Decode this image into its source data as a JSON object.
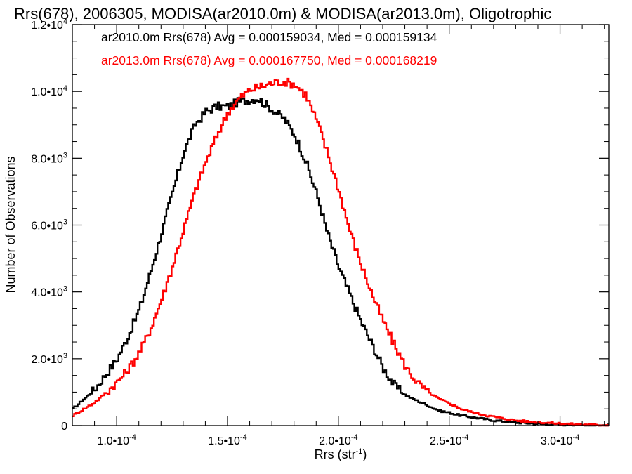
{
  "chart_data": {
    "type": "line",
    "title": "Rrs(678), 2006305, MODISA(ar2010.0m) & MODISA(ar2013.0m), Oligotrophic",
    "xlabel_main": "Rrs (str",
    "xlabel_sup": "-1",
    "xlabel_close": ")",
    "ylabel": "Number of Observations",
    "xlim": [
      8e-05,
      0.000322
    ],
    "ylim": [
      0,
      12000
    ],
    "x_ticks": [
      {
        "value": 0.0001,
        "mant": "1.0•10",
        "exp": "-4"
      },
      {
        "value": 0.00015,
        "mant": "1.5•10",
        "exp": "-4"
      },
      {
        "value": 0.0002,
        "mant": "2.0•10",
        "exp": "-4"
      },
      {
        "value": 0.00025,
        "mant": "2.5•10",
        "exp": "-4"
      },
      {
        "value": 0.0003,
        "mant": "3.0•10",
        "exp": "-4"
      }
    ],
    "y_ticks": [
      {
        "value": 0,
        "mant": "0",
        "exp": ""
      },
      {
        "value": 2000,
        "mant": "2.0•10",
        "exp": "3"
      },
      {
        "value": 4000,
        "mant": "4.0•10",
        "exp": "3"
      },
      {
        "value": 6000,
        "mant": "6.0•10",
        "exp": "3"
      },
      {
        "value": 8000,
        "mant": "8.0•10",
        "exp": "3"
      },
      {
        "value": 10000,
        "mant": "1.0•10",
        "exp": "4"
      },
      {
        "value": 12000,
        "mant": "1.2•10",
        "exp": "4"
      }
    ],
    "series": [
      {
        "name": "ar2010.0m Rrs(678) Avg = 0.000159034, Med = 0.000159134",
        "color": "#000000",
        "x": [
          8e-05,
          8.5e-05,
          9e-05,
          9.5e-05,
          0.0001,
          0.000105,
          0.00011,
          0.000115,
          0.00012,
          0.000125,
          0.00013,
          0.000135,
          0.00014,
          0.000145,
          0.00015,
          0.000155,
          0.00016,
          0.000163,
          0.000165,
          0.00017,
          0.000175,
          0.00018,
          0.000185,
          0.00019,
          0.000195,
          0.0002,
          0.000205,
          0.00021,
          0.000215,
          0.00022,
          0.000225,
          0.00023,
          0.000235,
          0.00024,
          0.000245,
          0.00025,
          0.000255,
          0.00026,
          0.000265,
          0.00027,
          0.000275,
          0.00028,
          0.00029,
          0.0003,
          0.00031,
          0.00032
        ],
        "values": [
          500,
          800,
          1100,
          1550,
          2000,
          2700,
          3500,
          4600,
          5800,
          7000,
          8200,
          9000,
          9400,
          9550,
          9550,
          9700,
          9750,
          9800,
          9700,
          9450,
          9200,
          8700,
          7900,
          6900,
          5700,
          4700,
          3900,
          3100,
          2400,
          1700,
          1200,
          900,
          750,
          600,
          450,
          380,
          300,
          250,
          200,
          150,
          120,
          90,
          50,
          30,
          15,
          5
        ]
      },
      {
        "name": "ar2013.0m Rrs(678) Avg = 0.000167750, Med = 0.000168219",
        "color": "#ff0000",
        "x": [
          8e-05,
          8.5e-05,
          9e-05,
          9.5e-05,
          0.0001,
          0.000105,
          0.00011,
          0.000115,
          0.00012,
          0.000125,
          0.00013,
          0.000135,
          0.00014,
          0.000145,
          0.00015,
          0.000155,
          0.00016,
          0.000165,
          0.00017,
          0.000175,
          0.00018,
          0.000185,
          0.00019,
          0.000195,
          0.0002,
          0.000205,
          0.00021,
          0.000215,
          0.00022,
          0.000225,
          0.00023,
          0.000235,
          0.00024,
          0.000245,
          0.00025,
          0.000255,
          0.00026,
          0.000265,
          0.00027,
          0.000275,
          0.00028,
          0.00029,
          0.0003,
          0.00031,
          0.00032
        ],
        "values": [
          300,
          500,
          700,
          1000,
          1300,
          1700,
          2200,
          2900,
          3800,
          4800,
          5900,
          7000,
          7900,
          8700,
          9400,
          9800,
          10050,
          10150,
          10250,
          10300,
          10200,
          9900,
          9100,
          8100,
          7000,
          5800,
          4800,
          3900,
          3100,
          2400,
          1750,
          1300,
          1000,
          800,
          650,
          500,
          400,
          320,
          260,
          200,
          150,
          100,
          60,
          30,
          15
        ]
      }
    ]
  }
}
